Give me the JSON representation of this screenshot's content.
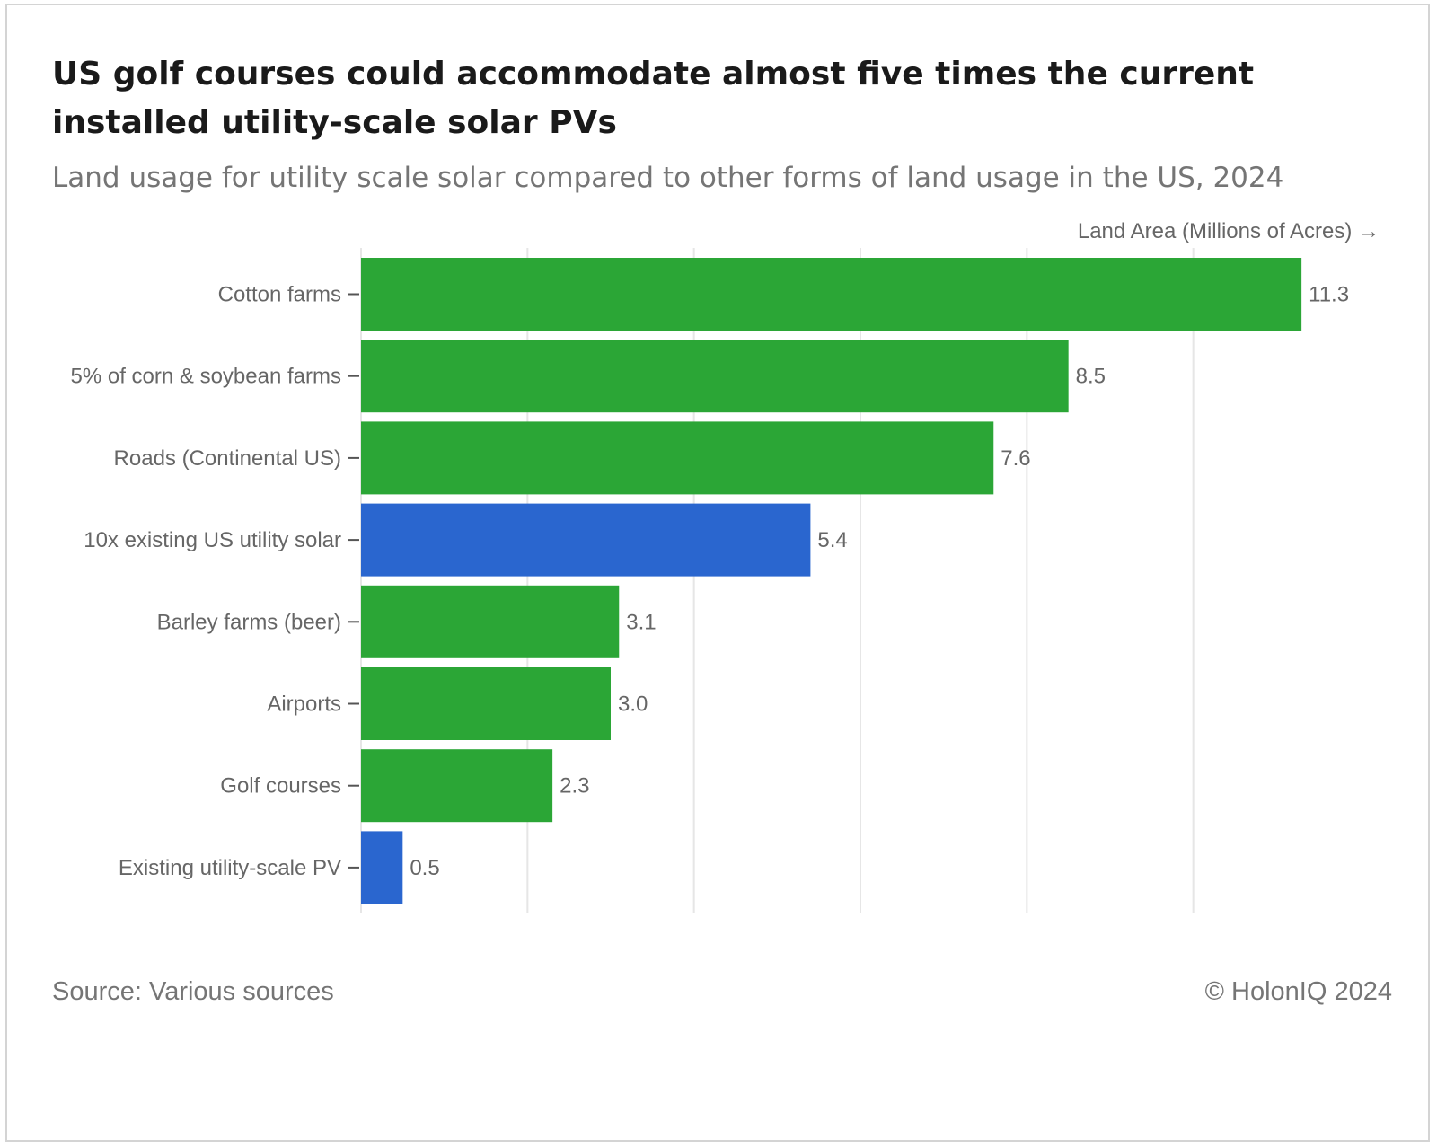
{
  "header": {
    "title": "US golf courses could accommodate almost five times the current installed utility-scale solar PVs",
    "subtitle": "Land usage for utility scale solar compared to other forms of land usage in the US, 2024"
  },
  "footer": {
    "source": "Source: Various sources",
    "copyright": "© HolonIQ 2024"
  },
  "colors": {
    "green": "#2ba636",
    "blue": "#2a66cf",
    "grid": "#e6e6e6",
    "text": "#666666"
  },
  "chart_data": {
    "type": "bar",
    "orientation": "horizontal",
    "title": "US golf courses could accommodate almost five times the current installed utility-scale solar PVs",
    "subtitle": "Land usage for utility scale solar compared to other forms of land usage in the US, 2024",
    "xlabel": "Land Area (Millions of Acres) →",
    "ylabel": "",
    "xlim": [
      0,
      12
    ],
    "grid": true,
    "categories": [
      "Cotton farms",
      "5% of corn & soybean farms",
      "Roads (Continental US)",
      "10x existing US utility solar",
      "Barley farms (beer)",
      "Airports",
      "Golf courses",
      "Existing utility-scale PV"
    ],
    "values": [
      11.3,
      8.5,
      7.6,
      5.4,
      3.1,
      3.0,
      2.3,
      0.5
    ],
    "labels": [
      "11.3",
      "8.5",
      "7.6",
      "5.4",
      "3.1",
      "3.0",
      "2.3",
      "0.5"
    ],
    "bar_colors": [
      "#2ba636",
      "#2ba636",
      "#2ba636",
      "#2a66cf",
      "#2ba636",
      "#2ba636",
      "#2ba636",
      "#2a66cf"
    ]
  }
}
